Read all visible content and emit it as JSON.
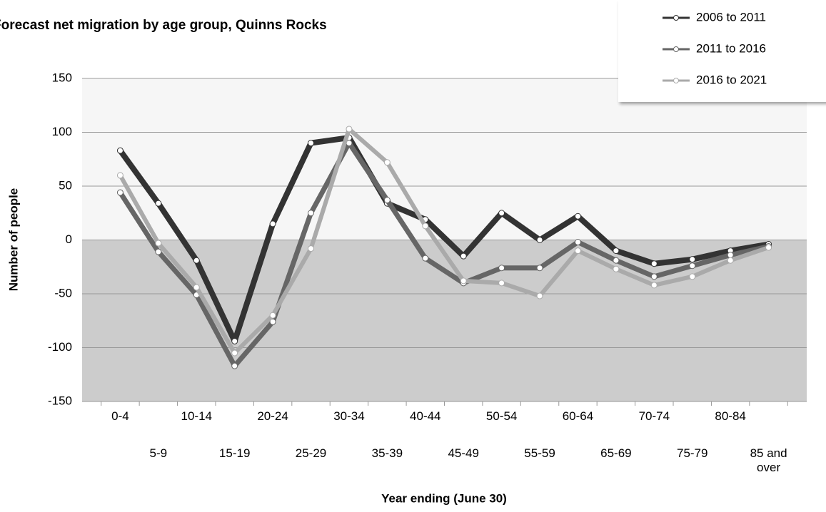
{
  "chart_data": {
    "type": "line",
    "title": "Forecast net migration by age group, Quinns Rocks",
    "x_label": "Year ending (June 30)",
    "y_label": "Number of people",
    "categories": [
      "0-4",
      "5-9",
      "10-14",
      "15-19",
      "20-24",
      "25-29",
      "30-34",
      "35-39",
      "40-44",
      "45-49",
      "50-54",
      "55-59",
      "60-64",
      "65-69",
      "70-74",
      "75-79",
      "80-84",
      "85 and over"
    ],
    "series": [
      {
        "name": "2006 to 2011",
        "color": "#333333",
        "values": [
          83,
          34,
          -19,
          -94,
          15,
          90,
          95,
          34,
          19,
          -15,
          25,
          0,
          22,
          -10,
          -22,
          -18,
          -10,
          -4
        ]
      },
      {
        "name": "2011 to 2016",
        "color": "#666666",
        "values": [
          44,
          -11,
          -51,
          -117,
          -76,
          25,
          90,
          37,
          -17,
          -40,
          -26,
          -26,
          -2,
          -19,
          -34,
          -24,
          -14,
          -6
        ]
      },
      {
        "name": "2016 to 2021",
        "color": "#aaaaaa",
        "values": [
          60,
          -3,
          -44,
          -105,
          -70,
          -8,
          103,
          72,
          13,
          -38,
          -40,
          -52,
          -10,
          -27,
          -42,
          -34,
          -19,
          -7
        ]
      }
    ],
    "ylim": [
      -150,
      150
    ],
    "yticks": [
      -150,
      -100,
      -50,
      0,
      50,
      100,
      150
    ],
    "grid": true,
    "legend": "top-right"
  }
}
